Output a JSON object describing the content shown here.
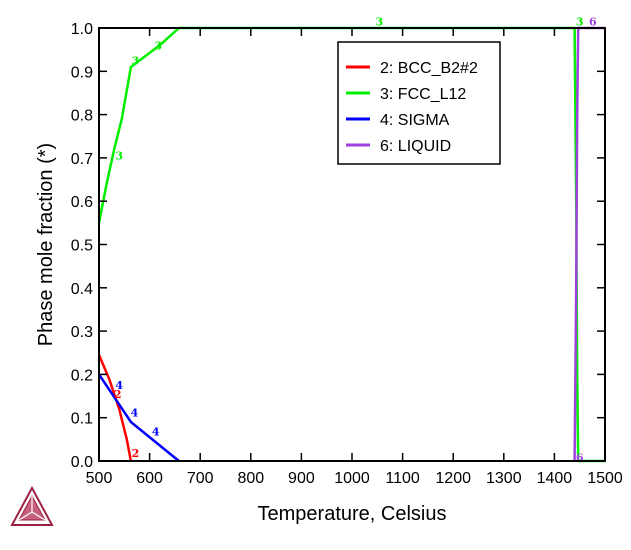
{
  "chart_data": {
    "type": "line",
    "title": "",
    "xlabel": "Temperature, Celsius",
    "ylabel": "Phase mole fraction (*)",
    "xlim": [
      500,
      1500
    ],
    "ylim": [
      0,
      1.0
    ],
    "grid": false,
    "xticks": [
      500,
      600,
      700,
      800,
      900,
      1000,
      1100,
      1200,
      1300,
      1400,
      1500
    ],
    "yticks": [
      0.0,
      0.1,
      0.2,
      0.3,
      0.4,
      0.5,
      0.6,
      0.7,
      0.8,
      0.9,
      1.0
    ],
    "legend_position": "top-right",
    "legend": [
      "2: BCC_B2#2",
      "3: FCC_L12",
      "4: SIGMA",
      "6: LIQUID"
    ],
    "series": [
      {
        "name": "2: BCC_B2#2",
        "label": "2",
        "color": "#ff0000",
        "x": [
          500,
          520,
          540,
          555,
          563
        ],
        "y": [
          0.245,
          0.19,
          0.12,
          0.05,
          0.0
        ]
      },
      {
        "name": "3: FCC_L12",
        "label": "3",
        "color": "#00ee00",
        "x": [
          500,
          515,
          530,
          545,
          563,
          620,
          658,
          1440,
          1443,
          1445,
          1447,
          1500
        ],
        "y": [
          0.55,
          0.64,
          0.72,
          0.79,
          0.91,
          0.96,
          1.0,
          1.0,
          0.6,
          0.2,
          0.0,
          0.0
        ]
      },
      {
        "name": "4: SIGMA",
        "label": "4",
        "color": "#0000ff",
        "x": [
          500,
          563,
          658
        ],
        "y": [
          0.2,
          0.09,
          0.0
        ]
      },
      {
        "name": "6: LIQUID",
        "label": "6",
        "color": "#a040e0",
        "x": [
          1440,
          1443,
          1445,
          1447,
          1500
        ],
        "y": [
          0.0,
          0.4,
          0.8,
          1.0,
          1.0
        ]
      }
    ],
    "curve_labels": [
      {
        "text": "2",
        "series": 0,
        "x": 572,
        "y": 0.018
      },
      {
        "text": "2",
        "series": 0,
        "x": 537,
        "y": 0.155
      },
      {
        "text": "3",
        "series": 1,
        "x": 540,
        "y": 0.705
      },
      {
        "text": "3",
        "series": 1,
        "x": 572,
        "y": 0.925
      },
      {
        "text": "3",
        "series": 1,
        "x": 617,
        "y": 0.96
      },
      {
        "text": "3",
        "series": 1,
        "x": 1054,
        "y": 1.015
      },
      {
        "text": "3",
        "series": 1,
        "x": 1450,
        "y": 1.015
      },
      {
        "text": "4",
        "series": 2,
        "x": 540,
        "y": 0.175
      },
      {
        "text": "4",
        "series": 2,
        "x": 570,
        "y": 0.112
      },
      {
        "text": "4",
        "series": 2,
        "x": 612,
        "y": 0.068
      },
      {
        "text": "6",
        "series": 3,
        "x": 1476,
        "y": 1.015
      },
      {
        "text": "6",
        "series": 3,
        "x": 1450,
        "y": 0.008
      }
    ]
  }
}
